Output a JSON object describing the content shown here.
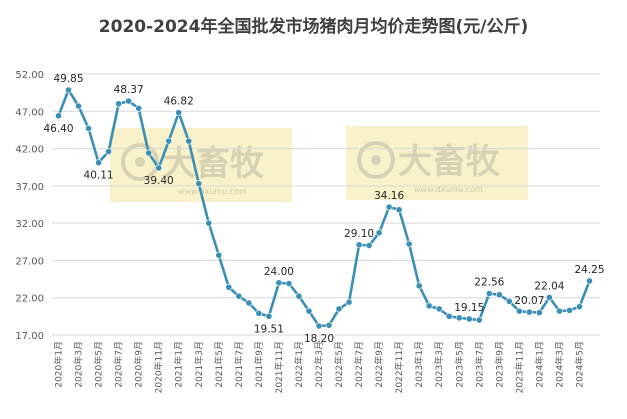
{
  "chart_data": {
    "type": "line",
    "title": "2020-2024年全国批发市场猪肉月均价走势图(元/公斤)",
    "xlabel": "",
    "ylabel": "",
    "ylim": [
      17.0,
      52.0
    ],
    "yticks": [
      "52.00",
      "47.00",
      "42.00",
      "37.00",
      "32.00",
      "27.00",
      "22.00",
      "17.00"
    ],
    "grid": true,
    "legend": "none",
    "color": "#3a8fb7",
    "watermark": {
      "brand": "大畜牧",
      "url": "www.dxumu.com"
    },
    "x": [
      "2020年1月",
      "2020年2月",
      "2020年3月",
      "2020年4月",
      "2020年5月",
      "2020年6月",
      "2020年7月",
      "2020年8月",
      "2020年9月",
      "2020年10月",
      "2020年11月",
      "2020年12月",
      "2021年1月",
      "2021年2月",
      "2021年3月",
      "2021年4月",
      "2021年5月",
      "2021年6月",
      "2021年7月",
      "2021年8月",
      "2021年9月",
      "2021年10月",
      "2021年11月",
      "2021年12月",
      "2022年1月",
      "2022年2月",
      "2022年3月",
      "2022年4月",
      "2022年5月",
      "2022年6月",
      "2022年7月",
      "2022年8月",
      "2022年9月",
      "2022年10月",
      "2022年11月",
      "2022年12月",
      "2023年1月",
      "2023年2月",
      "2023年3月",
      "2023年4月",
      "2023年5月",
      "2023年6月",
      "2023年7月",
      "2023年8月",
      "2023年9月",
      "2023年10月",
      "2023年11月",
      "2023年12月",
      "2024年1月",
      "2024年2月",
      "2024年3月",
      "2024年4月",
      "2024年5月",
      "2024年6月"
    ],
    "xtick_labels": [
      "2020年1月",
      "2020年3月",
      "2020年5月",
      "2020年7月",
      "2020年9月",
      "2020年11月",
      "2021年1月",
      "2021年3月",
      "2021年5月",
      "2021年7月",
      "2021年9月",
      "2021年11月",
      "2022年1月",
      "2022年3月",
      "2022年5月",
      "2022年7月",
      "2022年9月",
      "2022年11月",
      "2023年1月",
      "2023年3月",
      "2023年5月",
      "2023年7月",
      "2023年9月",
      "2023年11月",
      "2024年1月",
      "2024年3月",
      "2024年5月"
    ],
    "series": [
      {
        "values": [
          46.4,
          49.85,
          47.7,
          44.7,
          40.11,
          41.6,
          48.0,
          48.37,
          47.4,
          41.4,
          39.4,
          43.0,
          46.82,
          43.0,
          37.3,
          32.0,
          27.7,
          23.4,
          22.2,
          21.3,
          19.9,
          19.51,
          24.0,
          23.9,
          22.2,
          20.2,
          18.2,
          18.3,
          20.5,
          21.4,
          29.1,
          29.0,
          30.7,
          34.16,
          33.8,
          29.2,
          23.6,
          20.9,
          20.5,
          19.5,
          19.3,
          19.15,
          19.0,
          22.56,
          22.4,
          21.5,
          20.2,
          20.07,
          20.0,
          22.04,
          20.2,
          20.3,
          20.8,
          24.25
        ]
      }
    ],
    "data_labels": [
      {
        "index": 0,
        "text": "46.40"
      },
      {
        "index": 1,
        "text": "49.85"
      },
      {
        "index": 4,
        "text": "40.11"
      },
      {
        "index": 7,
        "text": "48.37"
      },
      {
        "index": 10,
        "text": "39.40"
      },
      {
        "index": 12,
        "text": "46.82"
      },
      {
        "index": 21,
        "text": "19.51"
      },
      {
        "index": 22,
        "text": "24.00"
      },
      {
        "index": 26,
        "text": "18.20"
      },
      {
        "index": 30,
        "text": "29.10"
      },
      {
        "index": 33,
        "text": "34.16"
      },
      {
        "index": 41,
        "text": "19.15"
      },
      {
        "index": 43,
        "text": "22.56"
      },
      {
        "index": 47,
        "text": "20.07"
      },
      {
        "index": 49,
        "text": "22.04"
      },
      {
        "index": 53,
        "text": "24.25"
      }
    ]
  }
}
